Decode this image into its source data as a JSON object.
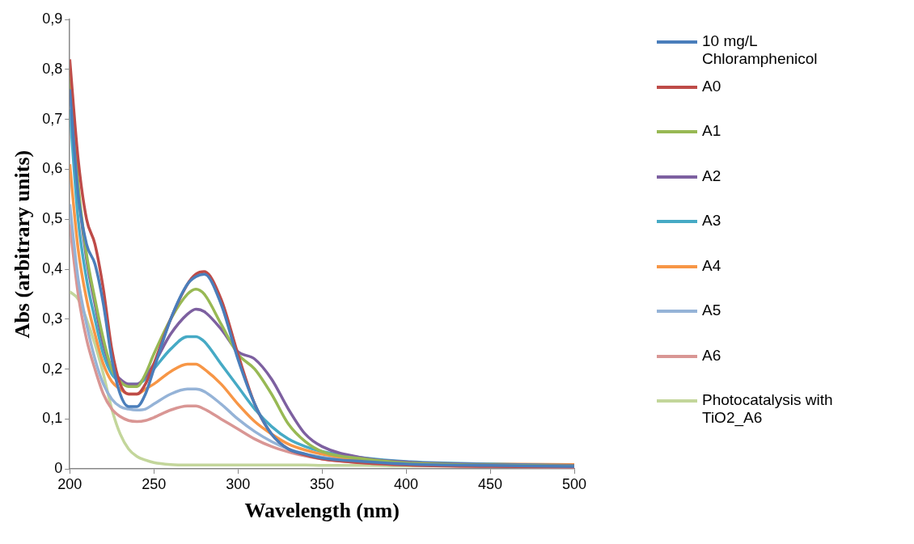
{
  "chart_data": {
    "type": "line",
    "xlabel": "Wavelength (nm)",
    "ylabel": "Abs (arbitrary units)",
    "x": [
      200,
      205,
      210,
      215,
      220,
      225,
      230,
      235,
      240,
      245,
      250,
      260,
      270,
      275,
      280,
      290,
      300,
      310,
      320,
      330,
      340,
      350,
      375,
      400,
      450,
      500
    ],
    "series": [
      {
        "name": "10 mg/L Chloramphenicol",
        "color": "#4a7ebb",
        "values": [
          0.76,
          0.55,
          0.45,
          0.41,
          0.33,
          0.22,
          0.15,
          0.125,
          0.125,
          0.15,
          0.2,
          0.3,
          0.37,
          0.385,
          0.39,
          0.33,
          0.22,
          0.13,
          0.07,
          0.04,
          0.03,
          0.022,
          0.015,
          0.01,
          0.007,
          0.005
        ]
      },
      {
        "name": "A0",
        "color": "#be4b48",
        "values": [
          0.82,
          0.62,
          0.5,
          0.45,
          0.36,
          0.24,
          0.17,
          0.15,
          0.15,
          0.17,
          0.21,
          0.3,
          0.37,
          0.39,
          0.395,
          0.34,
          0.23,
          0.13,
          0.07,
          0.04,
          0.028,
          0.02,
          0.012,
          0.008,
          0.005,
          0.004
        ]
      },
      {
        "name": "A1",
        "color": "#98b954",
        "values": [
          0.8,
          0.57,
          0.43,
          0.34,
          0.26,
          0.2,
          0.175,
          0.165,
          0.165,
          0.19,
          0.23,
          0.3,
          0.35,
          0.36,
          0.35,
          0.29,
          0.23,
          0.2,
          0.15,
          0.09,
          0.055,
          0.035,
          0.02,
          0.012,
          0.008,
          0.006
        ]
      },
      {
        "name": "A2",
        "color": "#7d60a0",
        "values": [
          0.78,
          0.56,
          0.42,
          0.33,
          0.25,
          0.2,
          0.18,
          0.17,
          0.17,
          0.185,
          0.21,
          0.27,
          0.31,
          0.32,
          0.315,
          0.28,
          0.235,
          0.22,
          0.18,
          0.12,
          0.07,
          0.045,
          0.022,
          0.014,
          0.009,
          0.007
        ]
      },
      {
        "name": "A3",
        "color": "#46aac5",
        "values": [
          0.72,
          0.5,
          0.38,
          0.3,
          0.23,
          0.19,
          0.175,
          0.17,
          0.17,
          0.18,
          0.2,
          0.24,
          0.265,
          0.265,
          0.255,
          0.21,
          0.165,
          0.12,
          0.085,
          0.06,
          0.045,
          0.035,
          0.022,
          0.015,
          0.01,
          0.007
        ]
      },
      {
        "name": "A4",
        "color": "#f79646",
        "values": [
          0.61,
          0.44,
          0.34,
          0.27,
          0.21,
          0.175,
          0.16,
          0.15,
          0.15,
          0.16,
          0.17,
          0.195,
          0.21,
          0.21,
          0.2,
          0.17,
          0.13,
          0.095,
          0.07,
          0.05,
          0.038,
          0.03,
          0.018,
          0.012,
          0.01,
          0.009
        ]
      },
      {
        "name": "A5",
        "color": "#95b3d7",
        "values": [
          0.53,
          0.38,
          0.29,
          0.22,
          0.17,
          0.14,
          0.125,
          0.12,
          0.118,
          0.12,
          0.13,
          0.15,
          0.16,
          0.16,
          0.155,
          0.13,
          0.1,
          0.075,
          0.055,
          0.04,
          0.03,
          0.024,
          0.015,
          0.01,
          0.006,
          0.004
        ]
      },
      {
        "name": "A6",
        "color": "#d99694",
        "values": [
          0.49,
          0.35,
          0.26,
          0.2,
          0.15,
          0.12,
          0.105,
          0.097,
          0.095,
          0.097,
          0.103,
          0.118,
          0.126,
          0.126,
          0.12,
          0.1,
          0.08,
          0.06,
          0.045,
          0.034,
          0.026,
          0.02,
          0.012,
          0.008,
          0.005,
          0.003
        ]
      },
      {
        "name": "Photocatalysis with TiO2_A6",
        "color": "#c3d69b",
        "values": [
          0.355,
          0.34,
          0.3,
          0.25,
          0.19,
          0.12,
          0.07,
          0.04,
          0.025,
          0.018,
          0.013,
          0.009,
          0.008,
          0.008,
          0.008,
          0.008,
          0.008,
          0.008,
          0.008,
          0.008,
          0.008,
          0.007,
          0.007,
          0.006,
          0.006,
          0.006
        ]
      }
    ],
    "xlim": [
      200,
      500
    ],
    "xticks": [
      200,
      250,
      300,
      350,
      400,
      450,
      500
    ],
    "ylim": [
      0,
      0.9
    ],
    "yticks": [
      {
        "value": 0,
        "label": "0"
      },
      {
        "value": 0.1,
        "label": "0,1"
      },
      {
        "value": 0.2,
        "label": "0,2"
      },
      {
        "value": 0.3,
        "label": "0,3"
      },
      {
        "value": 0.4,
        "label": "0,4"
      },
      {
        "value": 0.5,
        "label": "0,5"
      },
      {
        "value": 0.6,
        "label": "0,6"
      },
      {
        "value": 0.7,
        "label": "0,7"
      },
      {
        "value": 0.8,
        "label": "0,8"
      },
      {
        "value": 0.9,
        "label": "0,9"
      }
    ],
    "grid": false,
    "legend": "right",
    "marker": "none",
    "line_style": "solid"
  }
}
